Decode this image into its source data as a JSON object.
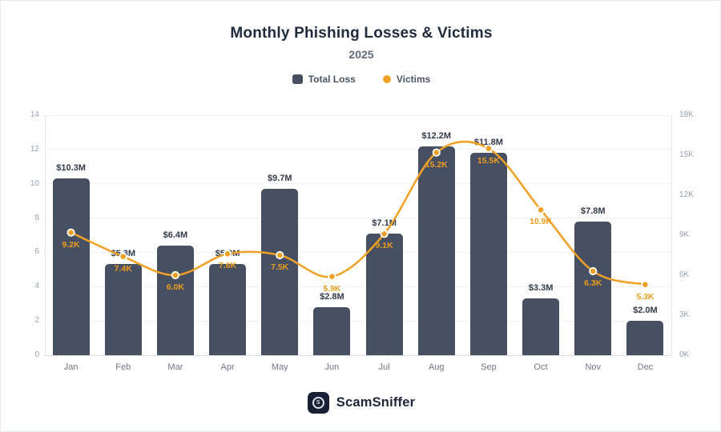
{
  "page": {
    "title": "Monthly Phishing Losses & Victims",
    "subtitle": "2025",
    "footer_brand": "ScamSniffer"
  },
  "legend": {
    "items": [
      {
        "label": "Total Loss",
        "color": "#475063",
        "shape": "square"
      },
      {
        "label": "Victims",
        "color": "#f0a024",
        "shape": "circle"
      }
    ]
  },
  "chart_data": {
    "type": "bar",
    "subtype": "combo-bar-line-dual-axis",
    "title": "Monthly Phishing Losses & Victims",
    "subtitle": "2025",
    "categories": [
      "Jan",
      "Feb",
      "Mar",
      "Apr",
      "May",
      "Jun",
      "Jul",
      "Aug",
      "Sep",
      "Oct",
      "Nov",
      "Dec"
    ],
    "series": [
      {
        "name": "Total Loss",
        "type": "bar",
        "y_axis": "left",
        "unit": "USD millions",
        "color": "#475063",
        "values": [
          10.3,
          5.3,
          6.4,
          5.3,
          9.7,
          2.8,
          7.1,
          12.2,
          11.8,
          3.3,
          7.8,
          2.0
        ],
        "labels": [
          "$10.3M",
          "$5.3M",
          "$6.4M",
          "$5.3M",
          "$9.7M",
          "$2.8M",
          "$7.1M",
          "$12.2M",
          "$11.8M",
          "$3.3M",
          "$7.8M",
          "$2.0M"
        ]
      },
      {
        "name": "Victims",
        "type": "line",
        "y_axis": "right",
        "unit": "thousands of victims",
        "color": "#f0a024",
        "values": [
          9.2,
          7.4,
          6.0,
          7.6,
          7.5,
          5.9,
          9.1,
          15.2,
          15.5,
          10.9,
          6.3,
          5.3
        ],
        "labels": [
          "9.2K",
          "7.4K",
          "6.0K",
          "7.6K",
          "7.5K",
          "5.9K",
          "9.1K",
          "15.2K",
          "15.5K",
          "10.9K",
          "6.3K",
          "5.3K"
        ]
      }
    ],
    "left_axis": {
      "min": 0,
      "max": 14,
      "tick_step": 2,
      "tick_labels": [
        "0",
        "2",
        "4",
        "6",
        "8",
        "10",
        "12",
        "14"
      ]
    },
    "right_axis": {
      "min": 0,
      "max": 18,
      "tick_step": 3,
      "tick_labels": [
        "0K",
        "3K",
        "6K",
        "9K",
        "12K",
        "15K",
        "18K"
      ]
    },
    "grid": true,
    "legend_position": "top",
    "xlabel": "",
    "ylabel_left": "",
    "ylabel_right": ""
  }
}
